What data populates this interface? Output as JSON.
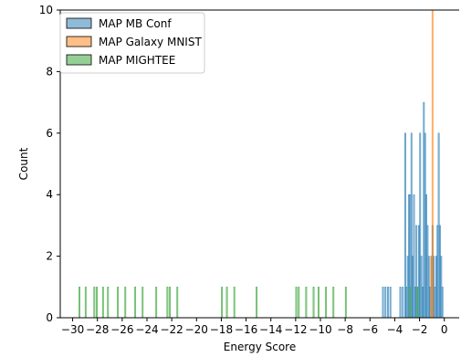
{
  "chart_data": {
    "type": "bar",
    "xlabel": "Energy Score",
    "ylabel": "Count",
    "xlim": [
      -31,
      1.2
    ],
    "ylim": [
      0,
      10
    ],
    "x_ticks": [
      -30,
      -28,
      -26,
      -24,
      -22,
      -20,
      -18,
      -16,
      -14,
      -12,
      -10,
      -8,
      -6,
      -4,
      -2,
      0
    ],
    "y_ticks": [
      0,
      2,
      4,
      6,
      8,
      10
    ],
    "bin_width": 0.1,
    "legend_position": "top-left",
    "grid": false,
    "series": [
      {
        "name": "MAP MB Conf",
        "color": "#1f77b4",
        "bars": [
          [
            -5.0,
            1
          ],
          [
            -4.8,
            1
          ],
          [
            -4.6,
            1
          ],
          [
            -4.4,
            1
          ],
          [
            -3.6,
            1
          ],
          [
            -3.4,
            1
          ],
          [
            -3.2,
            6
          ],
          [
            -3.1,
            1
          ],
          [
            -3.0,
            2
          ],
          [
            -2.9,
            4
          ],
          [
            -2.8,
            4
          ],
          [
            -2.7,
            6
          ],
          [
            -2.6,
            2
          ],
          [
            -2.5,
            4
          ],
          [
            -2.4,
            1
          ],
          [
            -2.3,
            3
          ],
          [
            -2.2,
            1
          ],
          [
            -2.1,
            3
          ],
          [
            -2.0,
            6
          ],
          [
            -1.9,
            2
          ],
          [
            -1.8,
            1
          ],
          [
            -1.7,
            7
          ],
          [
            -1.6,
            6
          ],
          [
            -1.5,
            4
          ],
          [
            -1.4,
            3
          ],
          [
            -1.3,
            2
          ],
          [
            -1.2,
            1
          ],
          [
            -1.1,
            2
          ],
          [
            -1.0,
            3
          ],
          [
            -0.9,
            2
          ],
          [
            -0.8,
            1
          ],
          [
            -0.7,
            2
          ],
          [
            -0.6,
            3
          ],
          [
            -0.5,
            6
          ],
          [
            -0.4,
            3
          ],
          [
            -0.3,
            2
          ],
          [
            -0.2,
            1
          ]
        ]
      },
      {
        "name": "MAP Galaxy MNIST",
        "color": "#ff7f0e",
        "bars": [
          [
            -1.1,
            2
          ],
          [
            -1.0,
            10
          ]
        ]
      },
      {
        "name": "MAP MIGHTEE",
        "color": "#2ca02c",
        "bars": [
          [
            -29.5,
            1
          ],
          [
            -29.0,
            1
          ],
          [
            -28.3,
            1
          ],
          [
            -28.1,
            1
          ],
          [
            -27.6,
            1
          ],
          [
            -27.2,
            1
          ],
          [
            -26.4,
            1
          ],
          [
            -25.8,
            1
          ],
          [
            -25.0,
            1
          ],
          [
            -24.4,
            1
          ],
          [
            -23.3,
            1
          ],
          [
            -22.4,
            1
          ],
          [
            -22.2,
            1
          ],
          [
            -21.6,
            1
          ],
          [
            -18.0,
            1
          ],
          [
            -17.6,
            1
          ],
          [
            -17.0,
            1
          ],
          [
            -15.2,
            1
          ],
          [
            -12.0,
            1
          ],
          [
            -11.8,
            1
          ],
          [
            -11.2,
            1
          ],
          [
            -10.6,
            1
          ],
          [
            -10.2,
            1
          ],
          [
            -9.6,
            1
          ],
          [
            -9.0,
            1
          ],
          [
            -8.0,
            1
          ],
          [
            -2.8,
            1
          ],
          [
            -2.2,
            1
          ]
        ]
      }
    ]
  }
}
